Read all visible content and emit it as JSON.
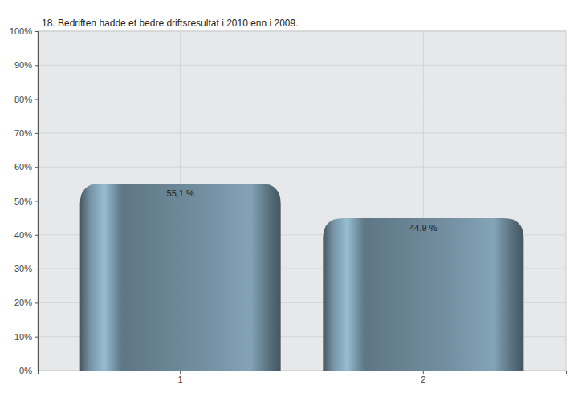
{
  "chart_data": {
    "type": "bar",
    "title": "18. Bedriften hadde et bedre driftsresultat i 2010 enn i 2009.",
    "categories": [
      "1",
      "2"
    ],
    "values": [
      55.1,
      44.9
    ],
    "value_labels": [
      "55,1 %",
      "44,9 %"
    ],
    "color": "#5f7785",
    "ylim": [
      0,
      100
    ],
    "yticks": [
      {
        "value": 0,
        "label": "0%"
      },
      {
        "value": 10,
        "label": "10%"
      },
      {
        "value": 20,
        "label": "20%"
      },
      {
        "value": 30,
        "label": "30%"
      },
      {
        "value": 40,
        "label": "40%"
      },
      {
        "value": 50,
        "label": "50%"
      },
      {
        "value": 60,
        "label": "60%"
      },
      {
        "value": 70,
        "label": "70%"
      },
      {
        "value": 80,
        "label": "80%"
      },
      {
        "value": 90,
        "label": "90%"
      },
      {
        "value": 100,
        "label": "100%"
      }
    ],
    "grid": true,
    "data_labels": true
  }
}
